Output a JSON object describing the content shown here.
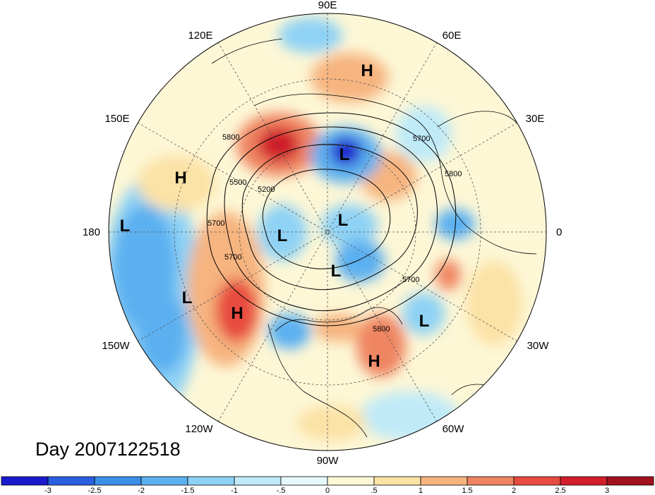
{
  "map": {
    "projection": "north-polar-stereographic",
    "longitude_labels": [
      "90E",
      "60E",
      "30E",
      "0",
      "30W",
      "60W",
      "90W",
      "120W",
      "150W",
      "180",
      "150E",
      "120E"
    ],
    "contour_labels": [
      "5800",
      "5700",
      "5200",
      "5500",
      "5700",
      "5700",
      "5800",
      "5700",
      "5800"
    ],
    "pressure_centers": [
      {
        "type": "H",
        "label": "H"
      },
      {
        "type": "H",
        "label": "H"
      },
      {
        "type": "L",
        "label": "L"
      },
      {
        "type": "L",
        "label": "L"
      },
      {
        "type": "L",
        "label": "L"
      },
      {
        "type": "L",
        "label": "L"
      },
      {
        "type": "H",
        "label": "H"
      },
      {
        "type": "L",
        "label": "L"
      },
      {
        "type": "L",
        "label": "L"
      },
      {
        "type": "L",
        "label": "L"
      },
      {
        "type": "H",
        "label": "H"
      }
    ],
    "day_label": "Day 2007122518"
  },
  "colorbar": {
    "tick_labels": [
      "-3",
      "-2.5",
      "-2",
      "-1.5",
      "-1",
      "-.5",
      "0",
      ".5",
      "1",
      "1.5",
      "2",
      "2.5",
      "3"
    ],
    "colors": [
      "#1a1acc",
      "#2a5fe0",
      "#3d8ee8",
      "#5cb0f0",
      "#8ed2f5",
      "#bfeaf8",
      "#e6f8fb",
      "#fdf7d6",
      "#fbe2a6",
      "#f6b47f",
      "#ef8562",
      "#e84b3f",
      "#d01e2a",
      "#a0101e"
    ]
  }
}
